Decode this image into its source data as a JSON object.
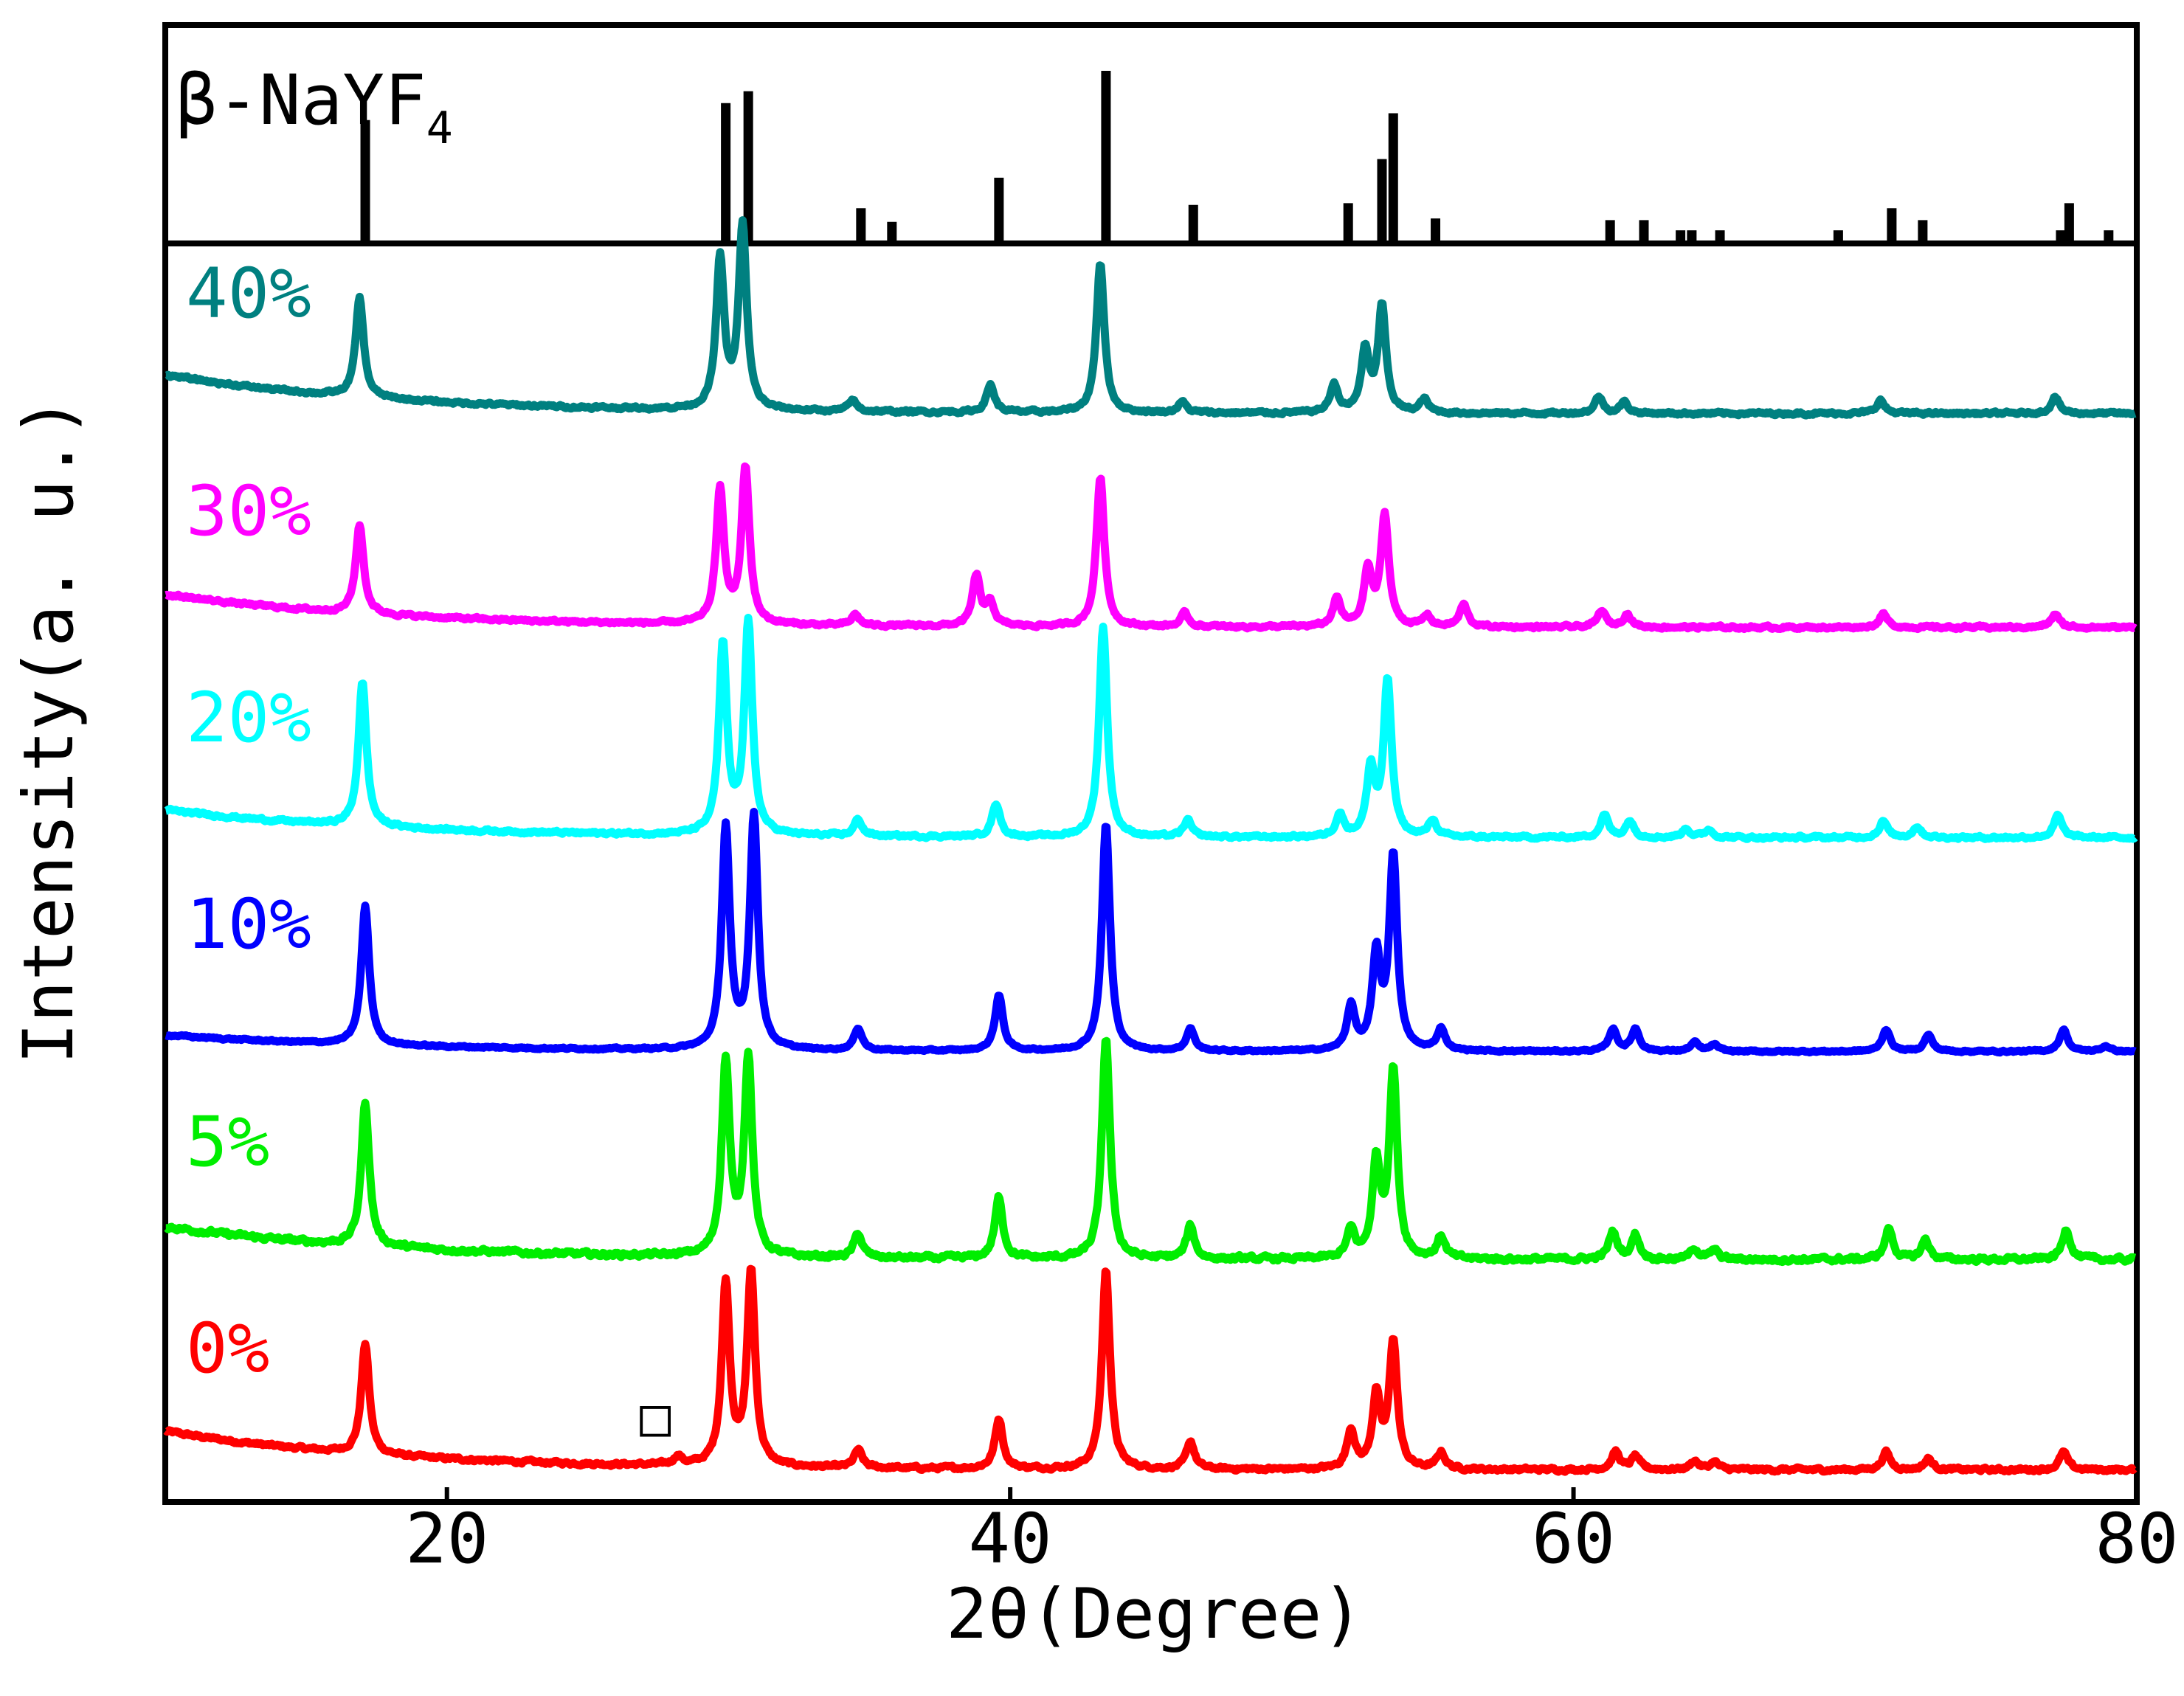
{
  "chart_data": {
    "type": "line",
    "title": "",
    "xlabel": "2θ(Degree)",
    "ylabel": "Intensity(a. u.)",
    "xlim": [
      10,
      80
    ],
    "xticks": [
      20,
      40,
      60,
      80
    ],
    "grid": false,
    "reference": {
      "name": "β-NaYF",
      "name_subscript": "4",
      "type": "stick",
      "peaks": [
        {
          "x": 17.1,
          "rel": 0.71
        },
        {
          "x": 29.9,
          "rel": 0.81
        },
        {
          "x": 30.7,
          "rel": 0.88
        },
        {
          "x": 34.7,
          "rel": 0.19
        },
        {
          "x": 35.8,
          "rel": 0.11
        },
        {
          "x": 39.6,
          "rel": 0.37
        },
        {
          "x": 43.4,
          "rel": 1.0
        },
        {
          "x": 46.5,
          "rel": 0.21
        },
        {
          "x": 52.0,
          "rel": 0.22
        },
        {
          "x": 53.2,
          "rel": 0.48
        },
        {
          "x": 53.6,
          "rel": 0.75
        },
        {
          "x": 55.1,
          "rel": 0.13
        },
        {
          "x": 61.3,
          "rel": 0.12
        },
        {
          "x": 62.5,
          "rel": 0.12
        },
        {
          "x": 63.8,
          "rel": 0.06
        },
        {
          "x": 64.2,
          "rel": 0.06
        },
        {
          "x": 65.2,
          "rel": 0.06
        },
        {
          "x": 69.4,
          "rel": 0.06
        },
        {
          "x": 71.3,
          "rel": 0.19
        },
        {
          "x": 72.4,
          "rel": 0.12
        },
        {
          "x": 77.3,
          "rel": 0.06
        },
        {
          "x": 77.6,
          "rel": 0.22
        },
        {
          "x": 79.0,
          "rel": 0.06
        }
      ]
    },
    "series": [
      {
        "name": "0%",
        "color": "#ff0000",
        "baseline": 0.05,
        "baseline_start": 0.35,
        "noise": 0.03,
        "peaks": [
          [
            17.1,
            1.0
          ],
          [
            28.2,
            0.08
          ],
          [
            29.9,
            1.65
          ],
          [
            30.8,
            1.75
          ],
          [
            34.6,
            0.16
          ],
          [
            39.6,
            0.45
          ],
          [
            43.4,
            1.8
          ],
          [
            46.4,
            0.25
          ],
          [
            52.1,
            0.35
          ],
          [
            53.0,
            0.65
          ],
          [
            53.6,
            1.15
          ],
          [
            55.3,
            0.15
          ],
          [
            61.5,
            0.16
          ],
          [
            62.2,
            0.12
          ],
          [
            64.3,
            0.08
          ],
          [
            65.0,
            0.07
          ],
          [
            71.1,
            0.16
          ],
          [
            72.6,
            0.1
          ],
          [
            77.4,
            0.16
          ]
        ],
        "marker": {
          "x": 27.4,
          "text": "□"
        }
      },
      {
        "name": "5%",
        "color": "#00ee00",
        "baseline": 0.05,
        "baseline_start": 0.3,
        "noise": 0.04,
        "peaks": [
          [
            17.1,
            1.3
          ],
          [
            29.9,
            1.75
          ],
          [
            30.7,
            1.8
          ],
          [
            34.6,
            0.22
          ],
          [
            39.6,
            0.55
          ],
          [
            43.4,
            2.0
          ],
          [
            46.4,
            0.3
          ],
          [
            52.1,
            0.25
          ],
          [
            53.0,
            0.85
          ],
          [
            53.6,
            1.7
          ],
          [
            55.3,
            0.2
          ],
          [
            61.4,
            0.25
          ],
          [
            62.2,
            0.22
          ],
          [
            64.3,
            0.1
          ],
          [
            65.0,
            0.08
          ],
          [
            71.2,
            0.28
          ],
          [
            72.5,
            0.18
          ],
          [
            77.5,
            0.28
          ]
        ]
      },
      {
        "name": "10%",
        "color": "#0000ff",
        "baseline": 0.03,
        "baseline_start": 0.15,
        "noise": 0.015,
        "peaks": [
          [
            17.1,
            1.25
          ],
          [
            29.9,
            2.0
          ],
          [
            30.9,
            2.1
          ],
          [
            34.6,
            0.2
          ],
          [
            39.6,
            0.5
          ],
          [
            43.4,
            2.05
          ],
          [
            46.4,
            0.2
          ],
          [
            52.1,
            0.4
          ],
          [
            53.0,
            0.85
          ],
          [
            53.6,
            1.75
          ],
          [
            55.3,
            0.2
          ],
          [
            61.4,
            0.2
          ],
          [
            62.2,
            0.2
          ],
          [
            64.3,
            0.08
          ],
          [
            65.0,
            0.06
          ],
          [
            71.1,
            0.2
          ],
          [
            72.6,
            0.15
          ],
          [
            77.4,
            0.2
          ],
          [
            78.9,
            0.05
          ]
        ]
      },
      {
        "name": "20%",
        "color": "#00ffff",
        "baseline": 0.03,
        "baseline_start": 0.25,
        "noise": 0.025,
        "peaks": [
          [
            17.0,
            1.3
          ],
          [
            29.8,
            1.7
          ],
          [
            30.7,
            1.9
          ],
          [
            34.6,
            0.15
          ],
          [
            39.5,
            0.3
          ],
          [
            43.3,
            1.9
          ],
          [
            46.3,
            0.15
          ],
          [
            51.7,
            0.2
          ],
          [
            52.8,
            0.6
          ],
          [
            53.4,
            1.4
          ],
          [
            55.0,
            0.15
          ],
          [
            61.1,
            0.2
          ],
          [
            62.0,
            0.15
          ],
          [
            64.0,
            0.08
          ],
          [
            64.8,
            0.07
          ],
          [
            71.0,
            0.15
          ],
          [
            72.2,
            0.1
          ],
          [
            77.2,
            0.2
          ]
        ]
      },
      {
        "name": "30%",
        "color": "#ff00ff",
        "baseline": 0.03,
        "baseline_start": 0.3,
        "noise": 0.025,
        "peaks": [
          [
            16.9,
            0.8
          ],
          [
            29.7,
            1.2
          ],
          [
            30.6,
            1.4
          ],
          [
            34.5,
            0.1
          ],
          [
            38.8,
            0.45
          ],
          [
            39.3,
            0.2
          ],
          [
            43.2,
            1.35
          ],
          [
            46.2,
            0.12
          ],
          [
            51.6,
            0.25
          ],
          [
            52.7,
            0.5
          ],
          [
            53.3,
            1.0
          ],
          [
            54.8,
            0.1
          ],
          [
            56.1,
            0.2
          ],
          [
            61.0,
            0.15
          ],
          [
            61.9,
            0.12
          ],
          [
            71.0,
            0.12
          ],
          [
            77.1,
            0.12
          ]
        ]
      },
      {
        "name": "40%",
        "color": "#008080",
        "baseline": 0.03,
        "baseline_start": 0.35,
        "noise": 0.025,
        "peaks": [
          [
            16.9,
            0.9
          ],
          [
            29.7,
            1.35
          ],
          [
            30.5,
            1.65
          ],
          [
            34.4,
            0.1
          ],
          [
            39.3,
            0.25
          ],
          [
            43.2,
            1.35
          ],
          [
            46.1,
            0.1
          ],
          [
            51.5,
            0.25
          ],
          [
            52.6,
            0.55
          ],
          [
            53.2,
            0.95
          ],
          [
            54.7,
            0.12
          ],
          [
            60.9,
            0.15
          ],
          [
            61.8,
            0.1
          ],
          [
            70.9,
            0.12
          ],
          [
            77.1,
            0.15
          ]
        ]
      }
    ]
  }
}
